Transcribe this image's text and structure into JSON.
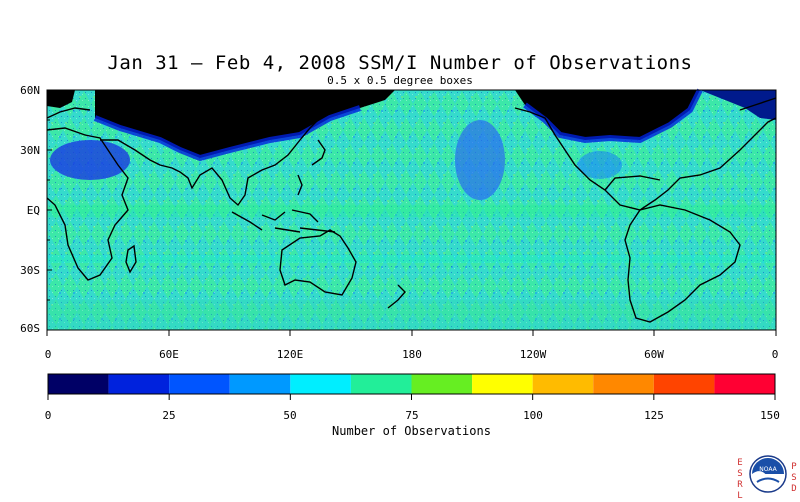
{
  "header": {
    "title": "Jan 31 – Feb 4, 2008 SSM/I Number of Observations",
    "subtitle": "0.5 x 0.5 degree boxes"
  },
  "map": {
    "lat_labels": [
      "60N",
      "30N",
      "EQ",
      "30S",
      "60S"
    ],
    "lon_labels": [
      "0",
      "60E",
      "120E",
      "180",
      "120W",
      "60W",
      "0"
    ],
    "no_data_color": "#000000",
    "dominant_color": "#40e8a0"
  },
  "colorbar": {
    "title": "Number of Observations",
    "tick_labels": [
      "0",
      "25",
      "50",
      "75",
      "100",
      "125",
      "150"
    ],
    "colors": [
      "#000066",
      "#0022dd",
      "#0055ff",
      "#0099ff",
      "#00eeff",
      "#22ee99",
      "#66ee22",
      "#ffff00",
      "#ffbb00",
      "#ff8800",
      "#ff4400",
      "#ff0033"
    ]
  },
  "branding": {
    "left_letters": [
      "E",
      "S",
      "R",
      "L"
    ],
    "right_letters": [
      "P",
      "S",
      "D"
    ],
    "logo_text": "NOAA"
  }
}
